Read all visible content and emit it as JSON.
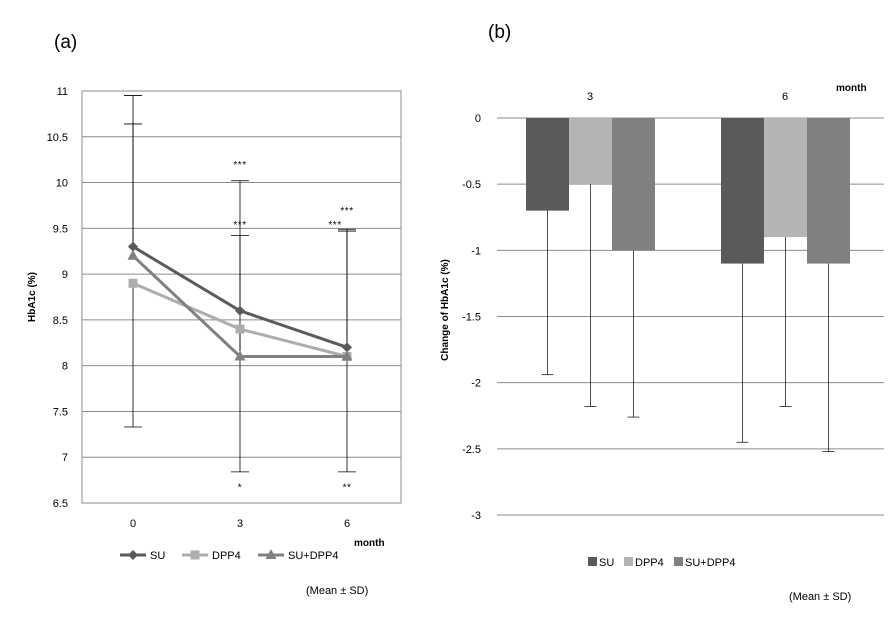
{
  "chart_data": [
    {
      "panel": "(a)",
      "type": "line",
      "x": [
        "0",
        "3",
        "6"
      ],
      "xlabel": "month",
      "ylabel": "HbA1c (%)",
      "ylim": [
        6.5,
        11
      ],
      "yticks": [
        "6.5",
        "7",
        "7.5",
        "8",
        "8.5",
        "9",
        "9.5",
        "10",
        "10.5",
        "11"
      ],
      "grid": true,
      "legend": "bottom",
      "series": [
        {
          "name": "SU",
          "marker": "diamond",
          "color": "#5a5a5a",
          "values": [
            9.3,
            8.6,
            8.2
          ],
          "err_upper": [
            10.95,
            10.02,
            9.47
          ],
          "err_lower": [
            null,
            null,
            null
          ]
        },
        {
          "name": "DPP4",
          "marker": "square",
          "color": "#adadad",
          "values": [
            8.9,
            8.4,
            8.1
          ],
          "err_upper": [
            null,
            null,
            null
          ],
          "err_lower": [
            7.33,
            6.84,
            6.84
          ]
        },
        {
          "name": "SU+DPP4",
          "marker": "triangle",
          "color": "#808080",
          "values": [
            9.2,
            8.1,
            8.1
          ],
          "err_upper": [
            10.64,
            9.42,
            9.49
          ],
          "err_lower": [
            null,
            null,
            null
          ]
        }
      ],
      "annotations": [
        {
          "x": "3",
          "text": "***",
          "y": 10.2
        },
        {
          "x": "3",
          "text": "***",
          "y": 9.55
        },
        {
          "x": "3",
          "text": "*",
          "y": 6.68
        },
        {
          "x": "6",
          "text": "***",
          "y": 9.55,
          "side": "left"
        },
        {
          "x": "6",
          "text": "***",
          "y": 9.7,
          "side": "right"
        },
        {
          "x": "6",
          "text": "**",
          "y": 6.68
        }
      ],
      "note": "(Mean ± SD)"
    },
    {
      "panel": "(b)",
      "type": "bar",
      "categories": [
        "3",
        "6"
      ],
      "xlabel": "month",
      "ylabel": "Change of HbA1c (%)",
      "ylim": [
        -3,
        0
      ],
      "yticks": [
        "0",
        "-0.5",
        "-1",
        "-1.5",
        "-2",
        "-2.5",
        "-3"
      ],
      "grid": true,
      "legend": "bottom",
      "series": [
        {
          "name": "SU",
          "color": "#5a5a5a",
          "values": [
            -0.7,
            -1.1
          ],
          "err_lower": [
            -1.94,
            -2.45
          ]
        },
        {
          "name": "DPP4",
          "color": "#b4b4b4",
          "values": [
            -0.5,
            -0.9
          ],
          "err_lower": [
            -2.18,
            -2.18
          ]
        },
        {
          "name": "SU+DPP4",
          "color": "#808080",
          "values": [
            -1.0,
            -1.1
          ],
          "err_lower": [
            -2.26,
            -2.52
          ]
        }
      ],
      "note": "(Mean ± SD)"
    }
  ]
}
